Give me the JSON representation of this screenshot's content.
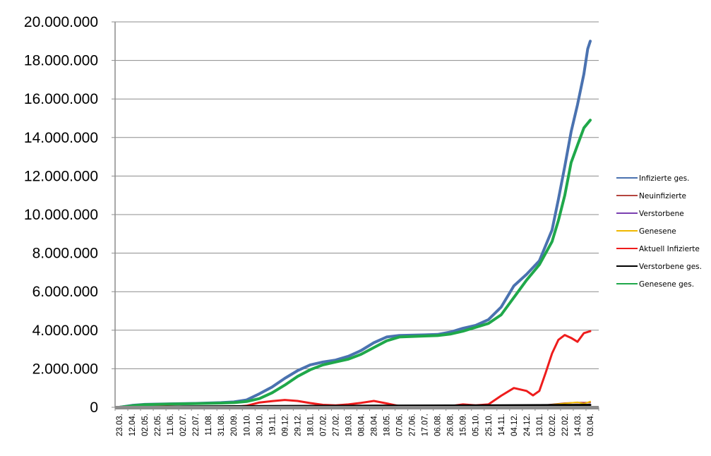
{
  "chart_data": {
    "type": "line",
    "title": "",
    "xlabel": "",
    "ylabel": "",
    "ylim": [
      0,
      20000000
    ],
    "y_ticks": [
      0,
      2000000,
      4000000,
      6000000,
      8000000,
      10000000,
      12000000,
      14000000,
      16000000,
      18000000,
      20000000
    ],
    "y_tick_labels": [
      "0",
      "2.000.000",
      "4.000.000",
      "6.000.000",
      "8.000.000",
      "10.000.000",
      "12.000.000",
      "14.000.000",
      "16.000.000",
      "18.000.000",
      "20.000.000"
    ],
    "x_tick_labels": [
      "23.03.",
      "12.04.",
      "02.05.",
      "22.05.",
      "11.06.",
      "02.07.",
      "22.07.",
      "11.08.",
      "31.08.",
      "20.09.",
      "10.10.",
      "30.10.",
      "19.11.",
      "09.12.",
      "29.12.",
      "18.01.",
      "07.02.",
      "27.02.",
      "19.03.",
      "08.04.",
      "28.04.",
      "18.05.",
      "07.06.",
      "27.06.",
      "17.07.",
      "06.08.",
      "26.08.",
      "15.09.",
      "05.10.",
      "25.10.",
      "14.11.",
      "04.12.",
      "24.12.",
      "13.01.",
      "02.02.",
      "22.02.",
      "14.03.",
      "03.04."
    ],
    "grid": "horizontal",
    "legend_position": "right",
    "series": [
      {
        "name": "Infizierte ges.",
        "color": "#4a72b0",
        "points": [
          [
            0,
            0
          ],
          [
            1,
            100000
          ],
          [
            2,
            150000
          ],
          [
            4,
            180000
          ],
          [
            6,
            200000
          ],
          [
            8,
            240000
          ],
          [
            9,
            280000
          ],
          [
            10,
            380000
          ],
          [
            11,
            700000
          ],
          [
            12,
            1050000
          ],
          [
            13,
            1500000
          ],
          [
            14,
            1900000
          ],
          [
            15,
            2200000
          ],
          [
            16,
            2350000
          ],
          [
            17,
            2450000
          ],
          [
            18,
            2650000
          ],
          [
            19,
            2950000
          ],
          [
            20,
            3350000
          ],
          [
            21,
            3650000
          ],
          [
            22,
            3730000
          ],
          [
            24,
            3760000
          ],
          [
            25,
            3780000
          ],
          [
            26,
            3900000
          ],
          [
            27,
            4100000
          ],
          [
            28,
            4250000
          ],
          [
            29,
            4550000
          ],
          [
            30,
            5200000
          ],
          [
            31,
            6300000
          ],
          [
            32,
            6900000
          ],
          [
            33,
            7600000
          ],
          [
            34,
            9200000
          ],
          [
            34.5,
            10800000
          ],
          [
            35,
            12500000
          ],
          [
            35.5,
            14300000
          ],
          [
            36,
            15700000
          ],
          [
            36.5,
            17300000
          ],
          [
            36.8,
            18600000
          ],
          [
            37,
            19000000
          ]
        ]
      },
      {
        "name": "Neuinfizierte",
        "color": "#b5453f",
        "points": [
          [
            0,
            0
          ],
          [
            1,
            5000
          ],
          [
            5,
            2000
          ],
          [
            10,
            4000
          ],
          [
            14,
            20000
          ],
          [
            20,
            10000
          ],
          [
            26,
            5000
          ],
          [
            29,
            15000
          ],
          [
            33,
            80000
          ],
          [
            34,
            150000
          ],
          [
            35,
            220000
          ],
          [
            36,
            250000
          ],
          [
            37,
            240000
          ]
        ]
      },
      {
        "name": "Verstorbene",
        "color": "#7a3fb0",
        "points": [
          [
            0,
            0
          ],
          [
            10,
            300
          ],
          [
            20,
            400
          ],
          [
            30,
            800
          ],
          [
            34,
            1500
          ],
          [
            37,
            2500
          ]
        ]
      },
      {
        "name": "Genesene",
        "color": "#f0b800",
        "points": [
          [
            0,
            0
          ],
          [
            5,
            3000
          ],
          [
            14,
            15000
          ],
          [
            20,
            10000
          ],
          [
            26,
            4000
          ],
          [
            29,
            12000
          ],
          [
            33,
            60000
          ],
          [
            34,
            140000
          ],
          [
            35,
            200000
          ],
          [
            36,
            260000
          ],
          [
            36.5,
            180000
          ],
          [
            37,
            300000
          ]
        ]
      },
      {
        "name": "Aktuell Infizierte",
        "color": "#ee1c1c",
        "points": [
          [
            0,
            0
          ],
          [
            1,
            80000
          ],
          [
            2,
            50000
          ],
          [
            5,
            30000
          ],
          [
            9,
            20000
          ],
          [
            10,
            80000
          ],
          [
            11,
            250000
          ],
          [
            12,
            320000
          ],
          [
            13,
            380000
          ],
          [
            14,
            330000
          ],
          [
            15,
            220000
          ],
          [
            16,
            130000
          ],
          [
            17,
            100000
          ],
          [
            18,
            150000
          ],
          [
            19,
            230000
          ],
          [
            20,
            330000
          ],
          [
            21,
            200000
          ],
          [
            22,
            60000
          ],
          [
            24,
            30000
          ],
          [
            26,
            60000
          ],
          [
            27,
            150000
          ],
          [
            28,
            100000
          ],
          [
            29,
            150000
          ],
          [
            30,
            600000
          ],
          [
            31,
            1000000
          ],
          [
            32,
            850000
          ],
          [
            32.5,
            620000
          ],
          [
            33,
            850000
          ],
          [
            33.5,
            1800000
          ],
          [
            34,
            2800000
          ],
          [
            34.5,
            3500000
          ],
          [
            35,
            3750000
          ],
          [
            35.5,
            3600000
          ],
          [
            36,
            3400000
          ],
          [
            36.5,
            3850000
          ],
          [
            37,
            3950000
          ]
        ]
      },
      {
        "name": "Verstorbene ges.",
        "color": "#000000",
        "points": [
          [
            0,
            0
          ],
          [
            2,
            10000
          ],
          [
            5,
            40000
          ],
          [
            10,
            60000
          ],
          [
            14,
            70000
          ],
          [
            20,
            80000
          ],
          [
            26,
            90000
          ],
          [
            30,
            100000
          ],
          [
            33,
            110000
          ],
          [
            35,
            120000
          ],
          [
            37,
            125000
          ]
        ]
      },
      {
        "name": "Genesene ges.",
        "color": "#1fa84a",
        "points": [
          [
            0,
            0
          ],
          [
            1,
            80000
          ],
          [
            2,
            140000
          ],
          [
            4,
            170000
          ],
          [
            6,
            190000
          ],
          [
            8,
            220000
          ],
          [
            9,
            240000
          ],
          [
            10,
            300000
          ],
          [
            11,
            450000
          ],
          [
            12,
            750000
          ],
          [
            13,
            1150000
          ],
          [
            14,
            1600000
          ],
          [
            15,
            1950000
          ],
          [
            16,
            2200000
          ],
          [
            17,
            2350000
          ],
          [
            18,
            2500000
          ],
          [
            19,
            2750000
          ],
          [
            20,
            3100000
          ],
          [
            21,
            3450000
          ],
          [
            22,
            3650000
          ],
          [
            24,
            3700000
          ],
          [
            25,
            3720000
          ],
          [
            26,
            3800000
          ],
          [
            27,
            3950000
          ],
          [
            28,
            4150000
          ],
          [
            29,
            4350000
          ],
          [
            30,
            4800000
          ],
          [
            31,
            5700000
          ],
          [
            32,
            6600000
          ],
          [
            33,
            7400000
          ],
          [
            34,
            8600000
          ],
          [
            34.5,
            9700000
          ],
          [
            35,
            11000000
          ],
          [
            35.5,
            12700000
          ],
          [
            36,
            13600000
          ],
          [
            36.5,
            14500000
          ],
          [
            37,
            14900000
          ]
        ]
      }
    ]
  }
}
